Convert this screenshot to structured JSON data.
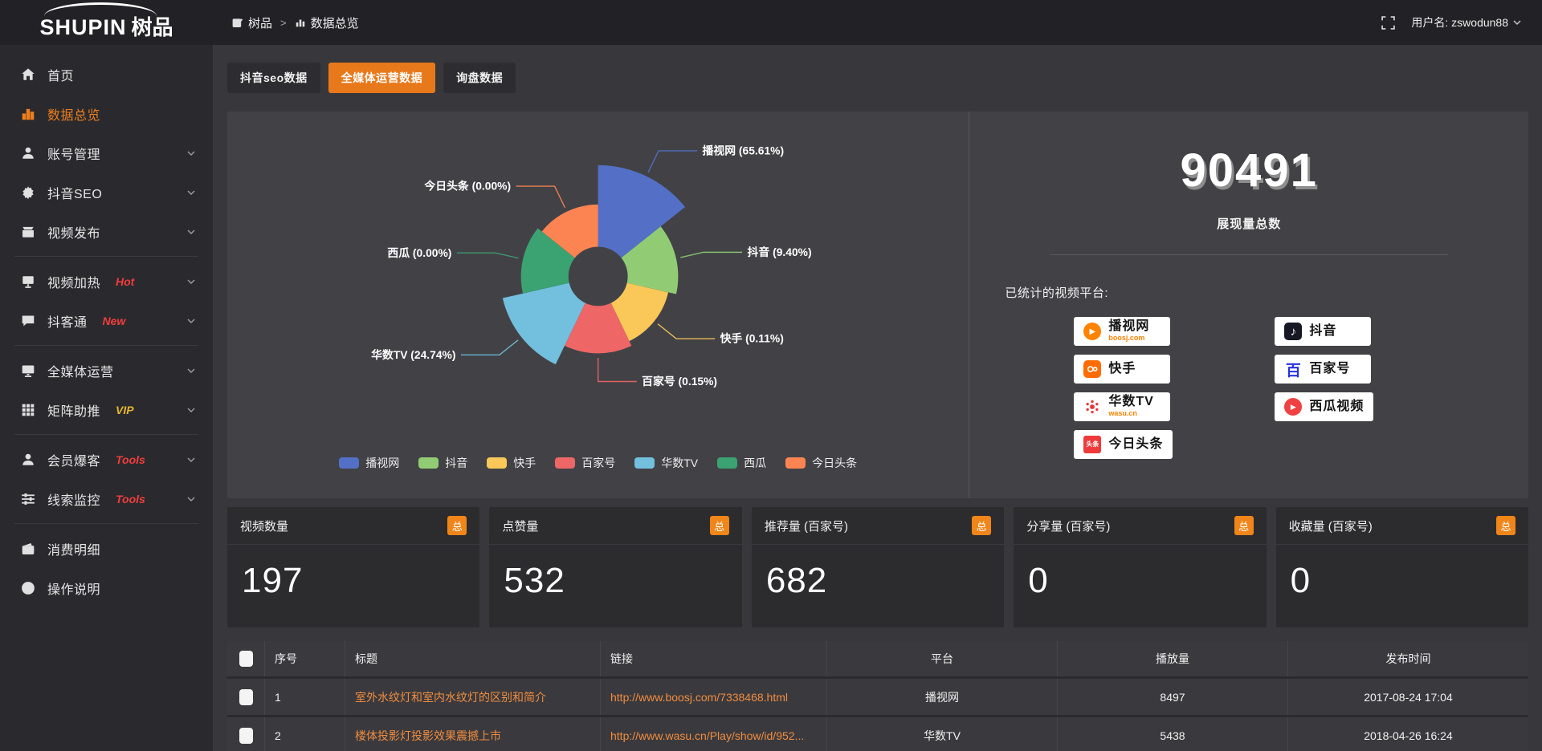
{
  "brand": {
    "logo_en": "SHUPIN",
    "logo_cn": "树品"
  },
  "topbar": {
    "breadcrumb_root": "树品",
    "breadcrumb_sep": ">",
    "breadcrumb_current": "数据总览",
    "username": "用户名: zswodun88"
  },
  "sidebar": {
    "items": [
      {
        "icon": "home-icon",
        "label": "首页"
      },
      {
        "icon": "chart-bars-icon",
        "label": "数据总览",
        "active": true
      },
      {
        "icon": "user-icon",
        "label": "账号管理",
        "expandable": true
      },
      {
        "icon": "gear-icon",
        "label": "抖音SEO",
        "expandable": true
      },
      {
        "icon": "video-publish-icon",
        "label": "视频发布",
        "expandable": true
      },
      {
        "icon": "monitor-icon",
        "label": "视频加热",
        "tag": "Hot",
        "expandable": true
      },
      {
        "icon": "chat-icon",
        "label": "抖客通",
        "tag": "New",
        "expandable": true
      },
      {
        "icon": "screen-icon",
        "label": "全媒体运营",
        "expandable": true
      },
      {
        "icon": "grid-icon",
        "label": "矩阵助推",
        "tag": "VIP",
        "expandable": true
      },
      {
        "icon": "member-icon",
        "label": "会员爆客",
        "tag": "Tools",
        "expandable": true
      },
      {
        "icon": "sliders-icon",
        "label": "线索监控",
        "tag": "Tools",
        "expandable": true
      },
      {
        "icon": "wallet-icon",
        "label": "消费明细"
      },
      {
        "icon": "question-icon",
        "label": "操作说明"
      }
    ]
  },
  "tabs": [
    {
      "label": "抖音seo数据",
      "active": false
    },
    {
      "label": "全媒体运营数据",
      "active": true
    },
    {
      "label": "询盘数据",
      "active": false
    }
  ],
  "chart_data": {
    "type": "pie",
    "subtype": "nightingale-rose",
    "unit": "%",
    "inner_radius": 40,
    "legend_position": "bottom",
    "items": [
      {
        "name": "播视网",
        "value": 65.61,
        "label": "播视网 (65.61%)",
        "color": "#5470c6",
        "radius": 150
      },
      {
        "name": "抖音",
        "value": 9.4,
        "label": "抖音 (9.40%)",
        "color": "#91cc75",
        "radius": 108
      },
      {
        "name": "快手",
        "value": 0.11,
        "label": "快手 (0.11%)",
        "color": "#fac858",
        "radius": 97
      },
      {
        "name": "百家号",
        "value": 0.15,
        "label": "百家号 (0.15%)",
        "color": "#ee6666",
        "radius": 104
      },
      {
        "name": "华数TV",
        "value": 24.74,
        "label": "华数TV (24.74%)",
        "color": "#73c0de",
        "radius": 132
      },
      {
        "name": "西瓜",
        "value": 0.0,
        "label": "西瓜 (0.00%)",
        "color": "#3ba272",
        "radius": 104
      },
      {
        "name": "今日头条",
        "value": 0.0,
        "label": "今日头条 (0.00%)",
        "color": "#fc8452",
        "radius": 97
      }
    ]
  },
  "summary": {
    "value": "90491",
    "value_label": "展现量总数",
    "platforms_title": "已统计的视频平台:",
    "platforms": [
      {
        "name": "播视网",
        "sub": "boosj.com"
      },
      {
        "name": "抖音"
      },
      {
        "name": "快手"
      },
      {
        "name": "百家号"
      },
      {
        "name": "华数TV",
        "sub": "wasu.cn"
      },
      {
        "name": "西瓜视频"
      },
      {
        "name": "今日头条"
      }
    ]
  },
  "icons": {
    "play": "▶",
    "music_note": "♪",
    "baijia_glyph": "百",
    "toutiao_glyph": "头条",
    "chevron": "∨"
  },
  "stat_cards": [
    {
      "label": "视频数量",
      "badge": "总",
      "value": "197"
    },
    {
      "label": "点赞量",
      "badge": "总",
      "value": "532"
    },
    {
      "label": "推荐量 (百家号)",
      "badge": "总",
      "value": "682"
    },
    {
      "label": "分享量 (百家号)",
      "badge": "总",
      "value": "0"
    },
    {
      "label": "收藏量 (百家号)",
      "badge": "总",
      "value": "0"
    }
  ],
  "table": {
    "headers": {
      "no": "序号",
      "title": "标题",
      "link": "链接",
      "platform": "平台",
      "plays": "播放量",
      "time": "发布时间"
    },
    "rows": [
      {
        "no": "1",
        "title": "室外水纹灯和室内水纹灯的区别和简介",
        "link": "http://www.boosj.com/7338468.html",
        "platform": "播视网",
        "plays": "8497",
        "time": "2017-08-24 17:04"
      },
      {
        "no": "2",
        "title": "楼体投影灯投影效果震撼上市",
        "link": "http://www.wasu.cn/Play/show/id/952...",
        "platform": "华数TV",
        "plays": "5438",
        "time": "2018-04-26 16:24"
      }
    ]
  },
  "colors": {
    "accent_orange": "#e8791b",
    "link_orange": "#f08c3e",
    "badge_orange": "#f08519",
    "tag_red": "#f23c3c",
    "tag_vip": "#e7b52f",
    "palette": [
      "#5470c6",
      "#91cc75",
      "#fac858",
      "#ee6666",
      "#73c0de",
      "#3ba272",
      "#fc8452"
    ]
  }
}
